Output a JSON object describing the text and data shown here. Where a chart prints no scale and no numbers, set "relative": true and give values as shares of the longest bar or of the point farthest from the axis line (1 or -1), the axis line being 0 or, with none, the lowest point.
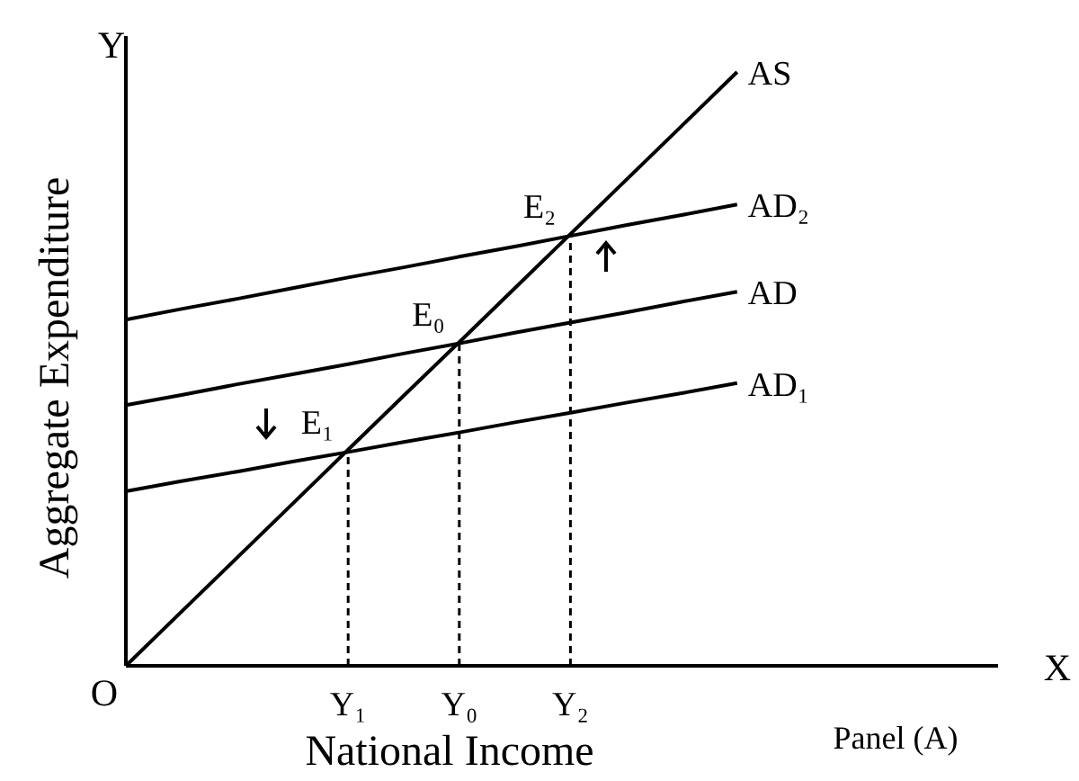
{
  "chart_data": {
    "type": "line",
    "relative": true,
    "xlabel": "National Income",
    "ylabel": "Aggregate Expenditure",
    "categories": [
      null,
      null,
      null,
      null,
      "Y₁",
      null,
      "Y₀",
      null,
      "Y₂",
      null,
      null,
      null
    ],
    "series": [
      {
        "name": "AS",
        "color": "#000000",
        "values": [
          0,
          0.091,
          0.182,
          0.273,
          0.364,
          0.455,
          0.545,
          0.636,
          0.727,
          0.818,
          0.909,
          1
        ]
      },
      {
        "name": "AD₂",
        "color": "#000000",
        "values": [
          0.583,
          0.601,
          0.618,
          0.636,
          0.654,
          0.671,
          0.689,
          0.706,
          0.724,
          0.742,
          0.759,
          0.777
        ]
      },
      {
        "name": "AD",
        "color": "#000000",
        "values": [
          0.439,
          0.456,
          0.474,
          0.491,
          0.508,
          0.526,
          0.543,
          0.561,
          0.578,
          0.595,
          0.613,
          0.63
        ]
      },
      {
        "name": "AD₁",
        "color": "#000000",
        "values": [
          0.294,
          0.311,
          0.327,
          0.344,
          0.36,
          0.377,
          0.393,
          0.41,
          0.426,
          0.443,
          0.459,
          0.476
        ]
      },
      {
        "color": "#000000",
        "line_style": "dashed",
        "x": [
          "Y₁",
          "Y₁"
        ],
        "values": [
          0,
          0.36
        ]
      },
      {
        "color": "#000000",
        "line_style": "dashed",
        "x": [
          "Y₀",
          "Y₀"
        ],
        "values": [
          0,
          0.543
        ]
      },
      {
        "color": "#000000",
        "line_style": "dashed",
        "x": [
          "Y₂",
          "Y₂"
        ],
        "values": [
          0,
          0.724
        ]
      }
    ],
    "annotations": [
      {
        "text": "E₂",
        "x": "Y₂",
        "y": 0.724
      },
      {
        "text": "E₀",
        "x": "Y₀",
        "y": 0.543
      },
      {
        "text": "E₁",
        "x": "Y₁",
        "y": 0.36
      },
      "Y",
      "X",
      "O",
      "Panel (A)"
    ],
    "marker": "none",
    "line_style": "solid"
  }
}
